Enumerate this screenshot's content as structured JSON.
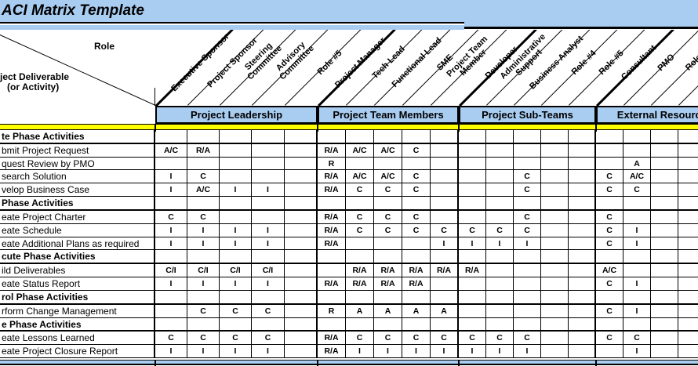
{
  "title": "ACI Matrix Template",
  "corner": {
    "role": "Role",
    "deliverable_line1": "ject Deliverable",
    "deliverable_line2": "(or Activity)"
  },
  "groups": [
    {
      "label": "Project Leadership"
    },
    {
      "label": "Project Team Members"
    },
    {
      "label": "Project Sub-Teams"
    },
    {
      "label": "External Resources"
    }
  ],
  "roles": [
    {
      "lines": [
        "Executive Sponsor"
      ]
    },
    {
      "lines": [
        "Project Sponsor"
      ]
    },
    {
      "lines": [
        "Steering",
        "Committee"
      ]
    },
    {
      "lines": [
        "Advisory",
        "Committee"
      ]
    },
    {
      "lines": [
        "Role #5"
      ]
    },
    {
      "lines": [
        "Project Manager"
      ]
    },
    {
      "lines": [
        "Tech Lead"
      ]
    },
    {
      "lines": [
        "Functional Lead"
      ]
    },
    {
      "lines": [
        "SME"
      ]
    },
    {
      "lines": [
        "Project Team",
        "Member"
      ]
    },
    {
      "lines": [
        "Developer"
      ]
    },
    {
      "lines": [
        "Administrative",
        "Support"
      ]
    },
    {
      "lines": [
        "Business Analyst"
      ]
    },
    {
      "lines": [
        "Role #4"
      ]
    },
    {
      "lines": [
        "Role #5"
      ]
    },
    {
      "lines": [
        "Consultant"
      ]
    },
    {
      "lines": [
        "PMO"
      ]
    },
    {
      "lines": [
        "Role"
      ]
    }
  ],
  "rows": [
    {
      "label": "te Phase Activities",
      "type": "phase",
      "cells": []
    },
    {
      "label": "bmit Project Request",
      "type": "activity",
      "cells": [
        "A/C",
        "R/A",
        "",
        "",
        "",
        "R/A",
        "A/C",
        "A/C",
        "C",
        "",
        "",
        "",
        "",
        "",
        "",
        "",
        "",
        ""
      ]
    },
    {
      "label": "quest Review by PMO",
      "type": "activity",
      "cells": [
        "",
        "",
        "",
        "",
        "",
        "R",
        "",
        "",
        "",
        "",
        "",
        "",
        "",
        "",
        "",
        "",
        "A",
        ""
      ]
    },
    {
      "label": "search Solution",
      "type": "activity",
      "cells": [
        "I",
        "C",
        "",
        "",
        "",
        "R/A",
        "A/C",
        "A/C",
        "C",
        "",
        "",
        "",
        "C",
        "",
        "",
        "C",
        "A/C",
        ""
      ]
    },
    {
      "label": "velop Business Case",
      "type": "activity",
      "cells": [
        "I",
        "A/C",
        "I",
        "I",
        "",
        "R/A",
        "C",
        "C",
        "C",
        "",
        "",
        "",
        "C",
        "",
        "",
        "C",
        "C",
        ""
      ]
    },
    {
      "label": "Phase Activities",
      "type": "phase",
      "cells": []
    },
    {
      "label": "eate Project Charter",
      "type": "activity",
      "cells": [
        "C",
        "C",
        "",
        "",
        "",
        "R/A",
        "C",
        "C",
        "C",
        "",
        "",
        "",
        "C",
        "",
        "",
        "C",
        "",
        ""
      ]
    },
    {
      "label": "eate Schedule",
      "type": "activity",
      "cells": [
        "I",
        "I",
        "I",
        "I",
        "",
        "R/A",
        "C",
        "C",
        "C",
        "C",
        "C",
        "C",
        "C",
        "",
        "",
        "C",
        "I",
        ""
      ]
    },
    {
      "label": "eate Additional Plans as required",
      "type": "activity",
      "cells": [
        "I",
        "I",
        "I",
        "I",
        "",
        "R/A",
        "",
        "",
        "",
        "I",
        "I",
        "I",
        "I",
        "",
        "",
        "C",
        "I",
        ""
      ]
    },
    {
      "label": "cute Phase Activities",
      "type": "phase",
      "cells": []
    },
    {
      "label": "ild Deliverables",
      "type": "activity",
      "cells": [
        "C/I",
        "C/I",
        "C/I",
        "C/I",
        "",
        "",
        "R/A",
        "R/A",
        "R/A",
        "R/A",
        "R/A",
        "",
        "",
        "",
        "",
        "A/C",
        "",
        ""
      ]
    },
    {
      "label": "eate Status Report",
      "type": "activity",
      "cells": [
        "I",
        "I",
        "I",
        "I",
        "",
        "R/A",
        "R/A",
        "R/A",
        "R/A",
        "",
        "",
        "",
        "",
        "",
        "",
        "C",
        "I",
        ""
      ]
    },
    {
      "label": "rol Phase Activities",
      "type": "phase",
      "cells": []
    },
    {
      "label": "rform Change Management",
      "type": "activity",
      "cells": [
        "",
        "C",
        "C",
        "C",
        "",
        "R",
        "A",
        "A",
        "A",
        "A",
        "",
        "",
        "",
        "",
        "",
        "C",
        "I",
        ""
      ]
    },
    {
      "label": "e Phase Activities",
      "type": "phase",
      "cells": []
    },
    {
      "label": "eate Lessons Learned",
      "type": "activity",
      "cells": [
        "C",
        "C",
        "C",
        "C",
        "",
        "R/A",
        "C",
        "C",
        "C",
        "C",
        "C",
        "C",
        "C",
        "",
        "",
        "C",
        "C",
        ""
      ]
    },
    {
      "label": "eate Project Closure Report",
      "type": "activity",
      "cells": [
        "I",
        "I",
        "I",
        "I",
        "",
        "R/A",
        "I",
        "I",
        "I",
        "I",
        "I",
        "I",
        "I",
        "",
        "",
        "",
        "I",
        ""
      ]
    }
  ],
  "colors": {
    "band_blue": "#A9CDF1",
    "highlight_yellow": "#FFFF00",
    "line_black": "#000000"
  }
}
